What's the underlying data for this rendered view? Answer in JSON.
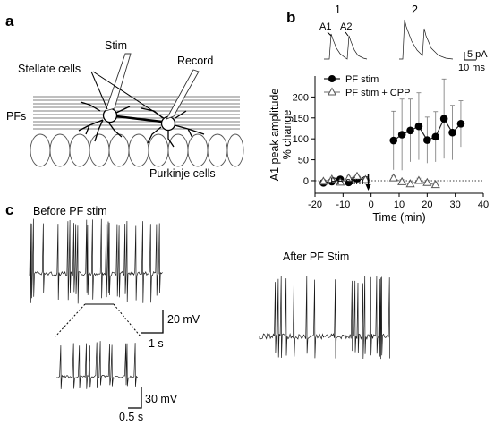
{
  "panels": {
    "a": {
      "letter": "a",
      "labels": {
        "stim": "Stim",
        "record": "Record",
        "stellate": "Stellate cells",
        "pfs": "PFs",
        "purkinje": "Purkinje cells"
      }
    },
    "b": {
      "letter": "b",
      "inset_labels": {
        "one": "1",
        "two": "2",
        "a1": "A1",
        "a2": "A2",
        "scale_pa": "5 pA",
        "scale_ms": "10 ms"
      },
      "pf_stim_label": "PF stim"
    },
    "c": {
      "letter": "c",
      "before_label": "Before PF stim",
      "after_label": "After PF Stim",
      "scale_20mv": "20 mV",
      "scale_1s": "1 s",
      "scale_30mv": "30 mV",
      "scale_05s": "0.5 s"
    }
  },
  "chart_data": {
    "type": "scatter",
    "xlabel": "Time (min)",
    "ylabel_lines": [
      "A1 peak amplitude",
      "% change"
    ],
    "xlim": [
      -20,
      40
    ],
    "ylim": [
      -30,
      250
    ],
    "xticks": [
      -20,
      -10,
      0,
      10,
      20,
      30,
      40
    ],
    "yticks": [
      0,
      50,
      100,
      150,
      200
    ],
    "legend_position": "top-left",
    "series": [
      {
        "name": "PF stim",
        "marker": "filled-circle",
        "x": [
          -17,
          -14,
          -11,
          -8,
          -5,
          -2,
          8,
          11,
          14,
          17,
          20,
          23,
          26,
          29,
          32
        ],
        "y": [
          -5,
          -2,
          3,
          -4,
          5,
          2,
          96,
          110,
          120,
          130,
          97,
          105,
          148,
          115,
          136
        ],
        "err": [
          6,
          6,
          6,
          6,
          6,
          6,
          70,
          85,
          75,
          80,
          55,
          60,
          95,
          65,
          55
        ]
      },
      {
        "name": "PF stim + CPP",
        "marker": "open-triangle",
        "x": [
          -17,
          -14,
          -11,
          -8,
          -5,
          -2,
          8,
          11,
          14,
          17,
          20,
          23
        ],
        "y": [
          -2,
          3,
          -4,
          6,
          10,
          2,
          6,
          -3,
          -8,
          0,
          -5,
          -10
        ],
        "err": [
          5,
          5,
          5,
          5,
          5,
          5,
          6,
          6,
          6,
          6,
          6,
          6
        ]
      }
    ]
  }
}
